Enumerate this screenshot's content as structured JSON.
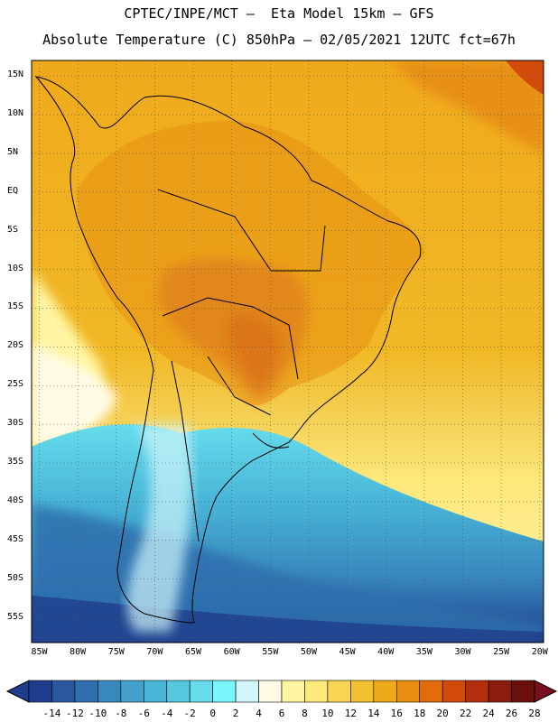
{
  "title_line1": "CPTEC/INPE/MCT –  Eta Model 15km – GFS",
  "title_line2": "Absolute Temperature (C) 850hPa – 02/05/2021 12UTC fct=67h",
  "lat_labels": [
    "15N",
    "10N",
    "5N",
    "EQ",
    "5S",
    "10S",
    "15S",
    "20S",
    "25S",
    "30S",
    "35S",
    "40S",
    "45S",
    "50S",
    "55S"
  ],
  "lon_labels": [
    "85W",
    "80W",
    "75W",
    "70W",
    "65W",
    "60W",
    "55W",
    "50W",
    "45W",
    "40W",
    "35W",
    "30W",
    "25W",
    "20W"
  ],
  "colorbar": {
    "labels": [
      "-14",
      "-12",
      "-10",
      "-8",
      "-6",
      "-4",
      "-2",
      "0",
      "2",
      "4",
      "6",
      "8",
      "10",
      "12",
      "14",
      "16",
      "18",
      "20",
      "22",
      "24",
      "26",
      "28"
    ],
    "colors": [
      "#1f3d8c",
      "#2a579e",
      "#2f6fae",
      "#3887bd",
      "#43a0cb",
      "#49b6d8",
      "#55c8e0",
      "#66dcec",
      "#7af5fb",
      "#cff6fb",
      "#fffbe6",
      "#fff5a3",
      "#fde87a",
      "#f9d556",
      "#f3c02f",
      "#efaa1c",
      "#e88f12",
      "#e26c0c",
      "#d24b0b",
      "#b42f0d",
      "#8c1c10",
      "#6a0f0c"
    ]
  },
  "colors": {
    "ocean_cold": "#2d5fa6",
    "ocean_cyan": "#4fc5de",
    "land_warm": "#e79a22",
    "hot_core": "#df7f1f",
    "border": "#000000"
  }
}
